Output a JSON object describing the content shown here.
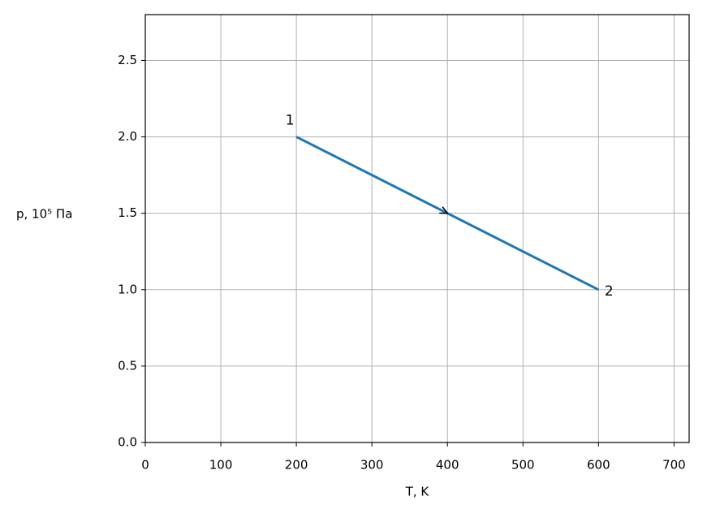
{
  "chart_data": {
    "type": "line",
    "xlabel": "T, K",
    "ylabel": "p, 10⁵ Па",
    "x": [
      200,
      600
    ],
    "series": [
      {
        "color": "#1f77b4",
        "values": [
          2.0,
          1.0
        ]
      }
    ],
    "point_labels": [
      "1",
      "2"
    ],
    "xlim": [
      0,
      720
    ],
    "xticks": [
      0,
      100,
      200,
      300,
      400,
      500,
      600,
      700
    ],
    "ylim": [
      0,
      2.8
    ],
    "yticks": [
      {
        "value": 0,
        "label": "0.0"
      },
      0.5,
      {
        "value": 1,
        "label": "1.0"
      },
      1.5,
      {
        "value": 2,
        "label": "2.0"
      },
      2.5
    ],
    "grid": true
  }
}
